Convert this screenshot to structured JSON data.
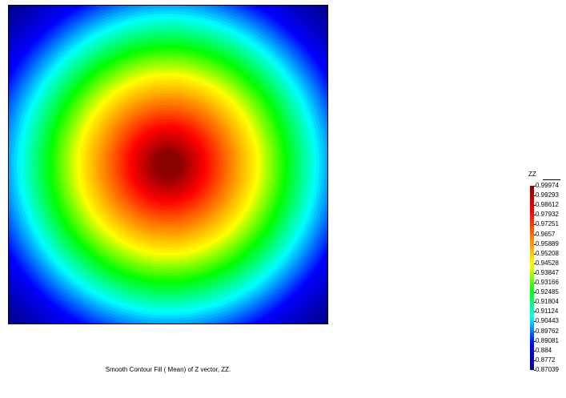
{
  "chart_data": {
    "type": "heatmap",
    "caption": "Smooth Contour Fill ( Mean) of Z vector, ZZ.",
    "colorbar": {
      "title": "ZZ",
      "position": "right",
      "levels": [
        "0.99974",
        "0.99293",
        "0.98612",
        "0.97932",
        "0.97251",
        "0.9657",
        "0.95889",
        "0.95208",
        "0.94528",
        "0.93847",
        "0.93166",
        "0.92485",
        "0.91804",
        "0.91124",
        "0.90443",
        "0.89762",
        "0.89081",
        "0.884",
        "0.8772",
        "0.87039"
      ],
      "min": 0.87039,
      "max": 0.99974
    },
    "field": {
      "shape": "radial",
      "center_value": 0.99974,
      "corner_value": 0.87039
    },
    "colors": {
      "stops": [
        "#00008b",
        "#0000ff",
        "#00ffff",
        "#00ff00",
        "#ffff00",
        "#ff8000",
        "#ff0000",
        "#8b0000"
      ]
    }
  }
}
